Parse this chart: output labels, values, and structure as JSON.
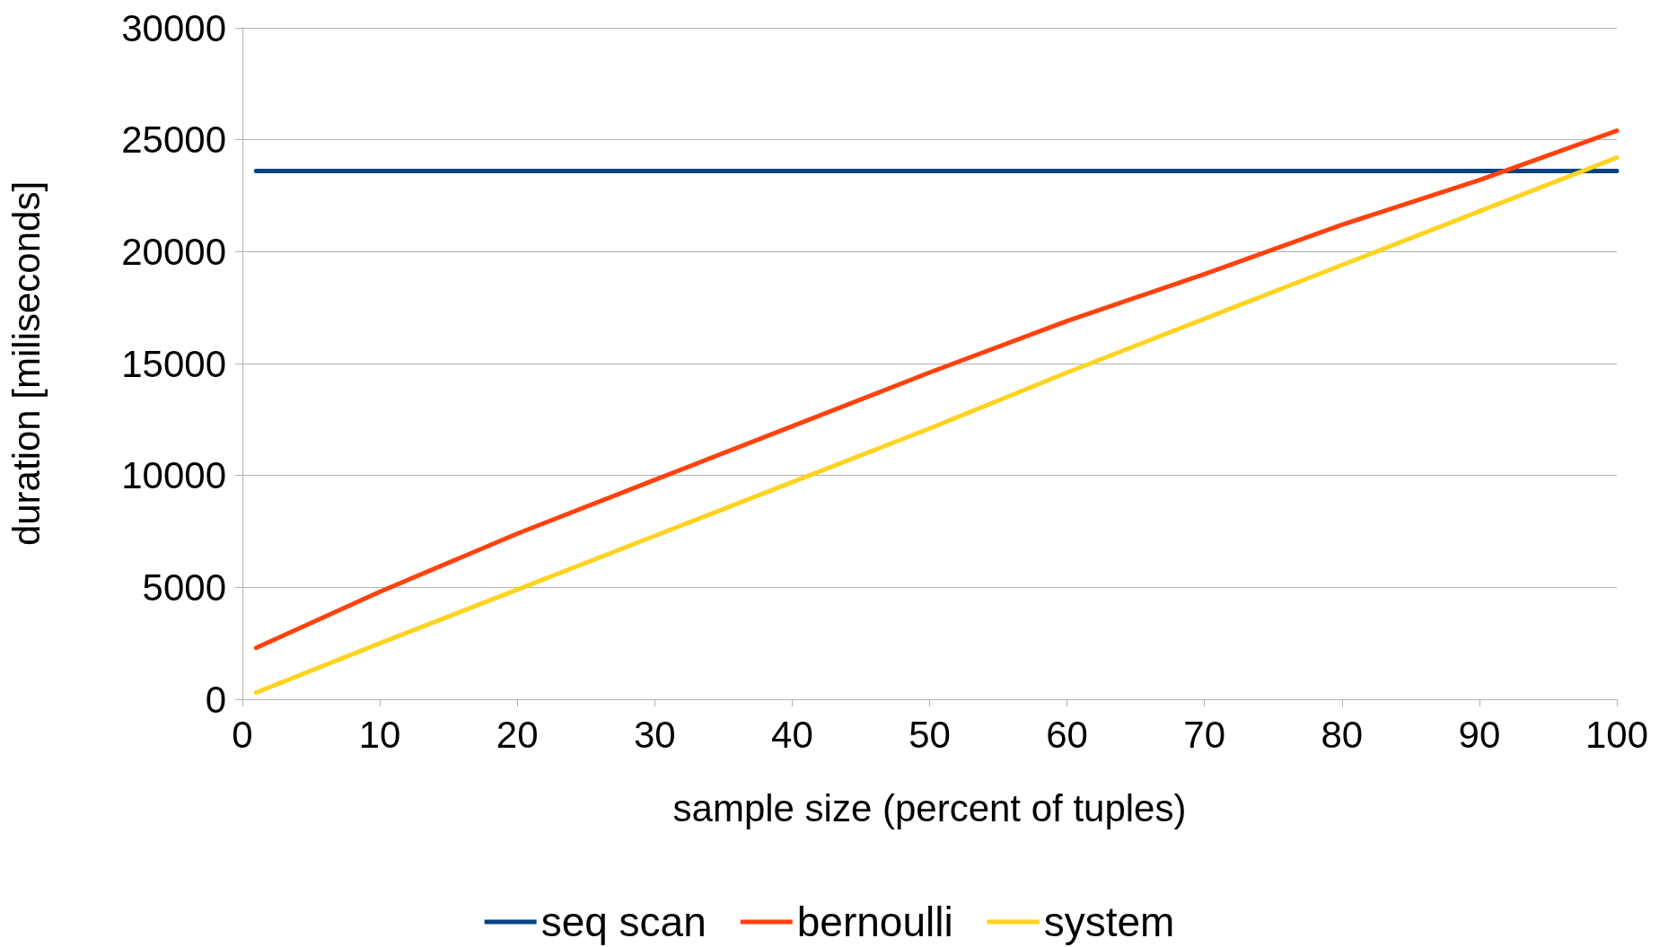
{
  "chart_data": {
    "type": "line",
    "xlabel": "sample size (percent of tuples)",
    "ylabel": "duration [miliseconds]",
    "xlim": [
      0,
      100
    ],
    "xticks": [
      0,
      10,
      20,
      30,
      40,
      50,
      60,
      70,
      80,
      90,
      100
    ],
    "ylim": [
      0,
      30000
    ],
    "yticks": [
      0,
      5000,
      10000,
      15000,
      20000,
      25000,
      30000
    ],
    "grid": "y",
    "legend": "bottom",
    "marker": "none",
    "line_style": "solid",
    "series": [
      {
        "name": "seq scan",
        "color": "#004586",
        "x": [
          1,
          100
        ],
        "values": [
          23600,
          23600
        ]
      },
      {
        "name": "bernoulli",
        "color": "#ff420e",
        "x": [
          1,
          10,
          20,
          30,
          40,
          50,
          60,
          70,
          80,
          90,
          100
        ],
        "values": [
          2300,
          4800,
          7400,
          9800,
          12200,
          14600,
          16900,
          19000,
          21200,
          23200,
          25400
        ]
      },
      {
        "name": "system",
        "color": "#ffd320",
        "x": [
          1,
          10,
          20,
          30,
          40,
          50,
          60,
          70,
          80,
          90,
          100
        ],
        "values": [
          300,
          2500,
          4900,
          7300,
          9700,
          12100,
          14600,
          17000,
          19400,
          21800,
          24200
        ]
      }
    ]
  }
}
